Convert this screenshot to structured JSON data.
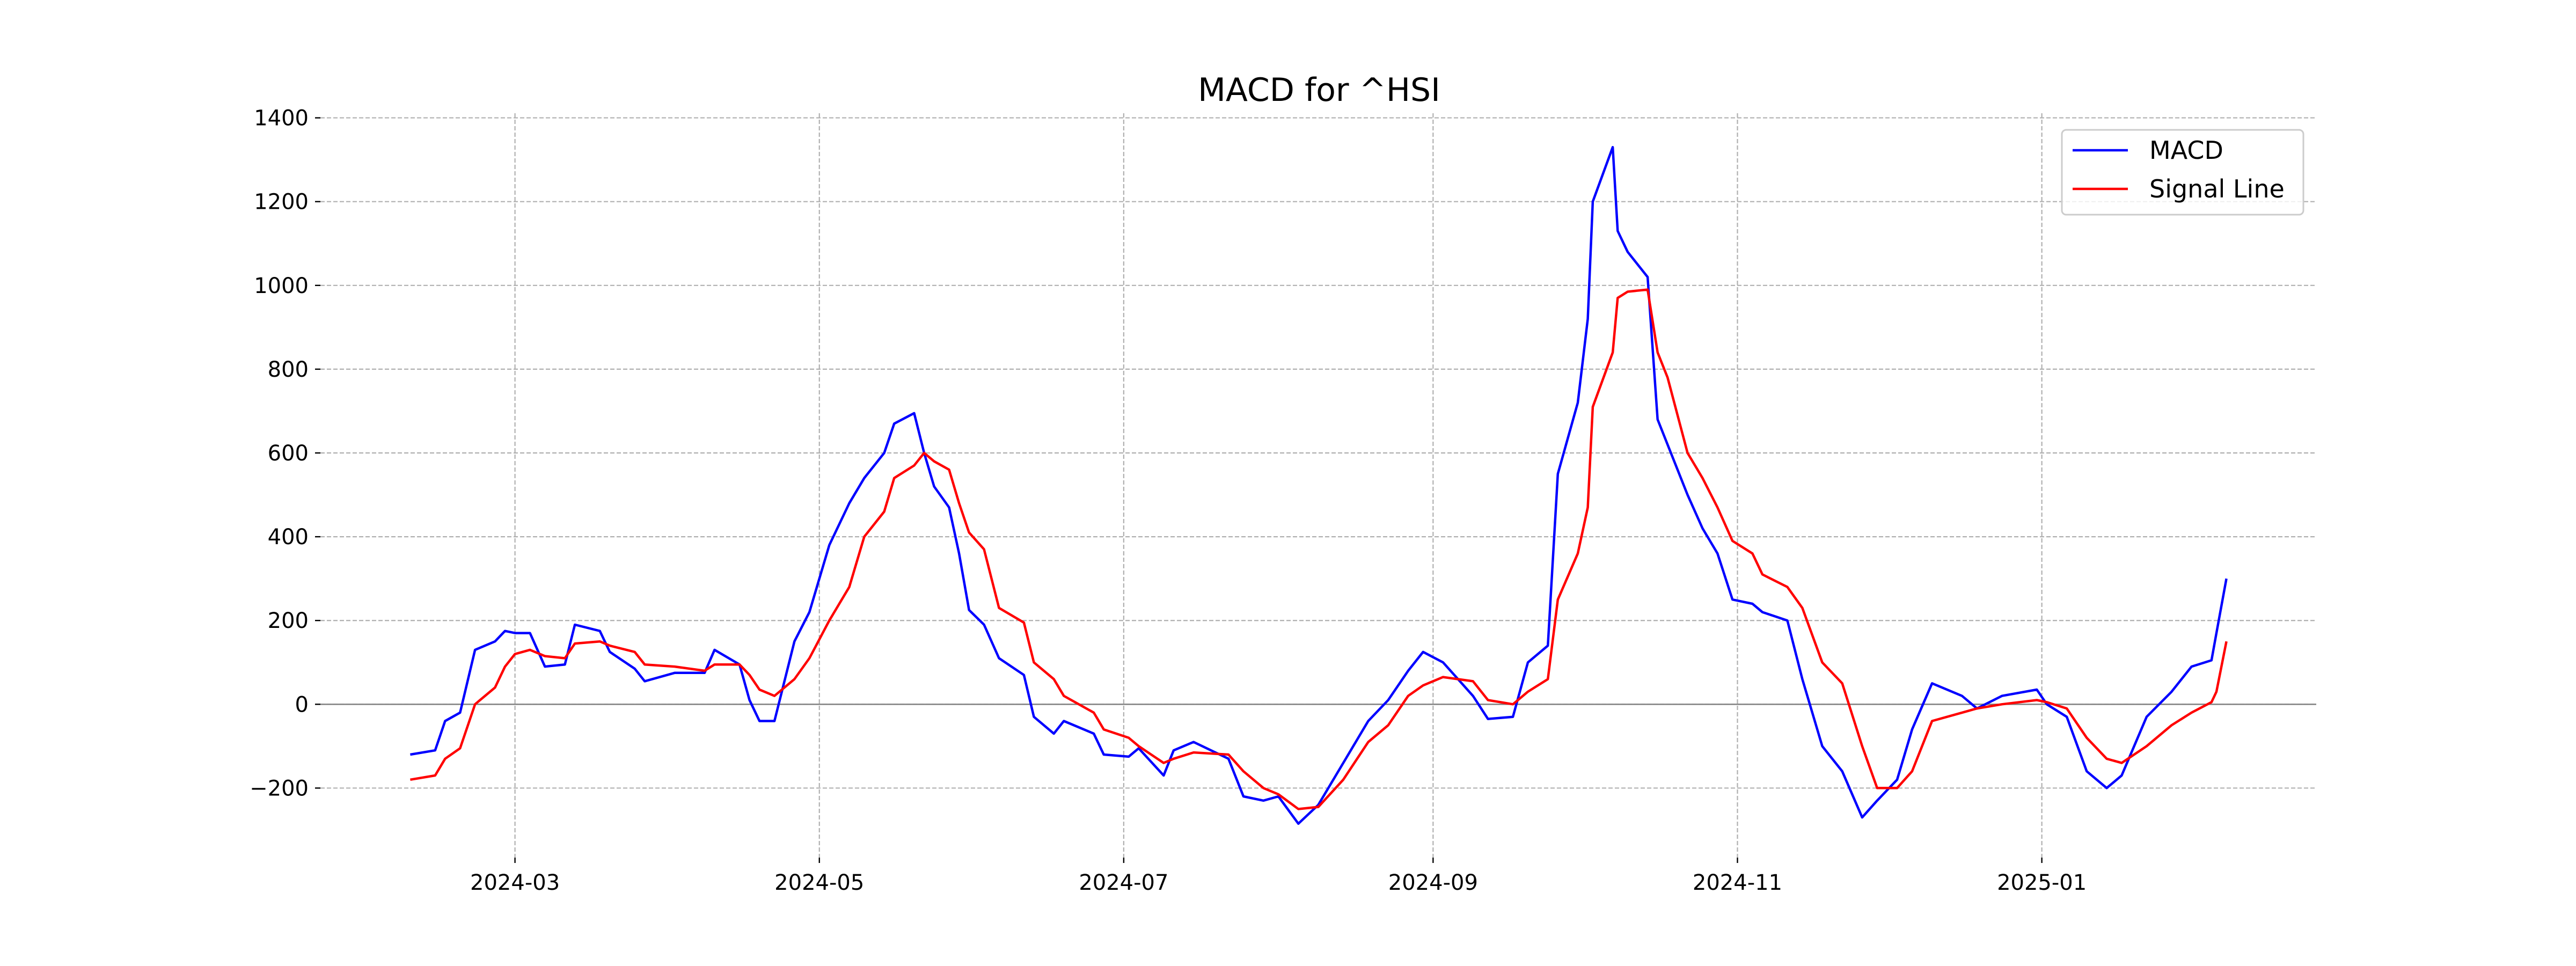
{
  "chart_data": {
    "type": "line",
    "title": "MACD for ^HSI",
    "xlabel": "",
    "ylabel": "",
    "xlim": [
      "2024-01-22",
      "2025-02-25"
    ],
    "ylim": [
      -366,
      1411
    ],
    "grid": true,
    "legend_position": "top-right",
    "x_ticks": [
      "2024-03",
      "2024-05",
      "2024-07",
      "2024-09",
      "2024-11",
      "2025-01"
    ],
    "y_ticks": [
      -200,
      0,
      200,
      400,
      600,
      800,
      1000,
      1200,
      1400
    ],
    "y_tick_labels": [
      "−200",
      "0",
      "200",
      "400",
      "600",
      "800",
      "1000",
      "1200",
      "1400"
    ],
    "x": [
      "2024-02-09",
      "2024-02-14",
      "2024-02-16",
      "2024-02-19",
      "2024-02-22",
      "2024-02-26",
      "2024-02-28",
      "2024-03-01",
      "2024-03-04",
      "2024-03-07",
      "2024-03-11",
      "2024-03-13",
      "2024-03-18",
      "2024-03-20",
      "2024-03-25",
      "2024-03-27",
      "2024-04-02",
      "2024-04-08",
      "2024-04-10",
      "2024-04-15",
      "2024-04-17",
      "2024-04-19",
      "2024-04-22",
      "2024-04-26",
      "2024-04-29",
      "2024-05-03",
      "2024-05-07",
      "2024-05-10",
      "2024-05-14",
      "2024-05-16",
      "2024-05-20",
      "2024-05-22",
      "2024-05-24",
      "2024-05-27",
      "2024-05-29",
      "2024-05-31",
      "2024-06-03",
      "2024-06-06",
      "2024-06-11",
      "2024-06-13",
      "2024-06-17",
      "2024-06-19",
      "2024-06-25",
      "2024-06-27",
      "2024-07-02",
      "2024-07-04",
      "2024-07-09",
      "2024-07-11",
      "2024-07-15",
      "2024-07-22",
      "2024-07-25",
      "2024-07-29",
      "2024-08-01",
      "2024-08-05",
      "2024-08-09",
      "2024-08-14",
      "2024-08-19",
      "2024-08-23",
      "2024-08-27",
      "2024-08-30",
      "2024-09-03",
      "2024-09-09",
      "2024-09-12",
      "2024-09-17",
      "2024-09-20",
      "2024-09-24",
      "2024-09-26",
      "2024-09-30",
      "2024-10-02",
      "2024-10-03",
      "2024-10-07",
      "2024-10-08",
      "2024-10-10",
      "2024-10-14",
      "2024-10-16",
      "2024-10-18",
      "2024-10-22",
      "2024-10-25",
      "2024-10-28",
      "2024-10-31",
      "2024-11-04",
      "2024-11-06",
      "2024-11-11",
      "2024-11-14",
      "2024-11-18",
      "2024-11-22",
      "2024-11-26",
      "2024-11-29",
      "2024-12-03",
      "2024-12-06",
      "2024-12-10",
      "2024-12-16",
      "2024-12-19",
      "2024-12-24",
      "2024-12-31",
      "2025-01-02",
      "2025-01-06",
      "2025-01-10",
      "2025-01-14",
      "2025-01-17",
      "2025-01-22",
      "2025-01-27",
      "2025-01-31",
      "2025-02-04",
      "2025-02-05",
      "2025-02-07"
    ],
    "series": [
      {
        "name": "MACD",
        "color": "#0000ff",
        "values": [
          -120,
          -110,
          -40,
          -20,
          130,
          150,
          175,
          170,
          170,
          90,
          95,
          190,
          175,
          125,
          85,
          55,
          75,
          75,
          130,
          95,
          10,
          -40,
          -40,
          150,
          220,
          380,
          480,
          540,
          600,
          670,
          695,
          600,
          520,
          470,
          360,
          225,
          190,
          110,
          70,
          -30,
          -70,
          -40,
          -70,
          -120,
          -125,
          -105,
          -170,
          -110,
          -90,
          -130,
          -220,
          -230,
          -220,
          -285,
          -240,
          -140,
          -40,
          10,
          80,
          125,
          100,
          20,
          -35,
          -30,
          100,
          140,
          550,
          720,
          920,
          1200,
          1330,
          1130,
          1080,
          1020,
          680,
          620,
          500,
          420,
          360,
          250,
          240,
          220,
          200,
          60,
          -100,
          -160,
          -270,
          -230,
          -180,
          -60,
          50,
          20,
          -10,
          20,
          35,
          0,
          -30,
          -160,
          -200,
          -170,
          -30,
          30,
          90,
          105,
          170,
          300
        ]
      },
      {
        "name": "Signal Line",
        "color": "#ff0000",
        "values": [
          -180,
          -170,
          -130,
          -105,
          0,
          40,
          90,
          120,
          130,
          115,
          110,
          145,
          150,
          140,
          125,
          95,
          90,
          80,
          95,
          95,
          70,
          35,
          20,
          60,
          110,
          200,
          280,
          400,
          460,
          540,
          570,
          600,
          580,
          560,
          480,
          410,
          370,
          230,
          195,
          100,
          60,
          20,
          -20,
          -60,
          -80,
          -100,
          -140,
          -130,
          -115,
          -120,
          -160,
          -200,
          -215,
          -250,
          -245,
          -180,
          -90,
          -50,
          20,
          45,
          65,
          55,
          10,
          0,
          30,
          60,
          250,
          360,
          470,
          710,
          840,
          970,
          985,
          990,
          840,
          780,
          600,
          540,
          470,
          390,
          360,
          310,
          280,
          230,
          100,
          50,
          -100,
          -200,
          -200,
          -160,
          -40,
          -20,
          -10,
          0,
          10,
          5,
          -10,
          -80,
          -130,
          -140,
          -100,
          -50,
          -20,
          5,
          30,
          150
        ]
      }
    ]
  }
}
